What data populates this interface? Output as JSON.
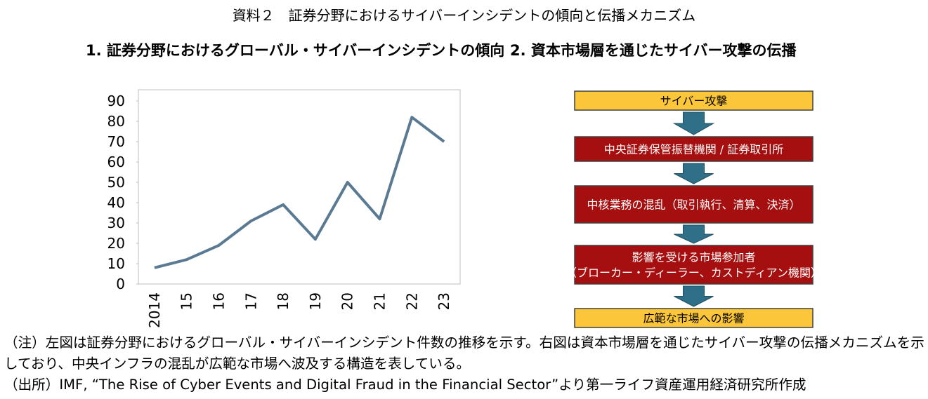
{
  "header": {
    "title": "資料２　証券分野におけるサイバーインシデントの傾向と伝播メカニズム"
  },
  "chart_data": {
    "type": "line",
    "title": "1. 証券分野におけるグローバル・サイバーインシデントの傾向",
    "categories": [
      "2014",
      "15",
      "16",
      "17",
      "18",
      "19",
      "20",
      "21",
      "22",
      "23"
    ],
    "values": [
      8,
      12,
      19,
      31,
      39,
      22,
      50,
      32,
      82,
      70
    ],
    "color": "#5a7a94",
    "ylim": [
      0,
      90
    ],
    "yticks": [
      0,
      10,
      20,
      30,
      40,
      50,
      60,
      70,
      80,
      90
    ],
    "grid": false
  },
  "diagram": {
    "title": "2. 資本市場層を通じたサイバー攻撃の伝播",
    "nodes": [
      {
        "lines": [
          "サイバー攻撃"
        ],
        "style": "yellow"
      },
      {
        "lines": [
          "中央証券保管振替機関 / 証券取引所"
        ],
        "style": "red"
      },
      {
        "lines": [
          "中核業務の混乱（取引執行、清算、決済）"
        ],
        "style": "red"
      },
      {
        "lines": [
          "影響を受ける市場参加者",
          "（ブローカー・ディーラー、カストディアン機関）"
        ],
        "style": "red"
      },
      {
        "lines": [
          "広範な市場への影響"
        ],
        "style": "yellow"
      }
    ]
  },
  "notes": {
    "note": "（注）左図は証券分野におけるグローバル・サイバーインシデント件数の推移を示す。右図は資本市場層を通じたサイバー攻撃の伝播メカニズムを示しており、中央インフラの混乱が広範な市場へ波及する構造を表している。",
    "source": "（出所）IMF, “The Rise of Cyber Events and Digital Fraud in the Financial Sector”より第一ライフ資産運用経済研究所作成"
  }
}
